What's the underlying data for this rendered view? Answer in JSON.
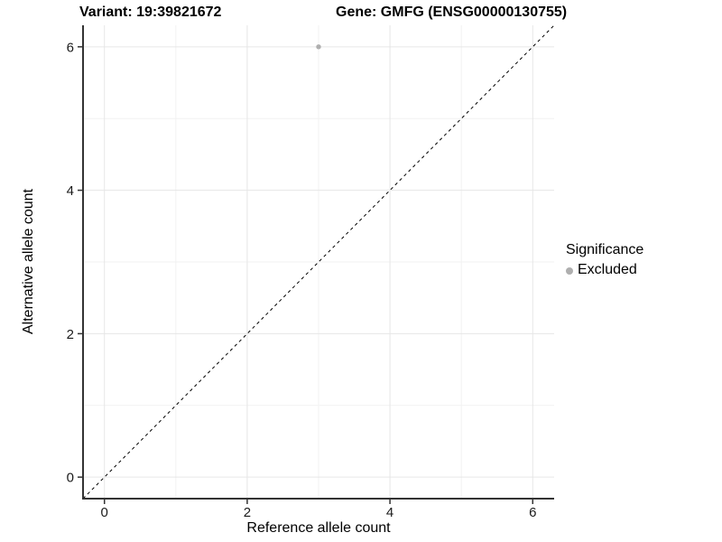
{
  "header": {
    "variant_title": "Variant: 19:39821672",
    "gene_title": "Gene: GMFG (ENSG00000130755)"
  },
  "chart_data": {
    "type": "scatter",
    "xlabel": "Reference allele count",
    "ylabel": "Alternative allele count",
    "xlim": [
      -0.3,
      6.3
    ],
    "ylim": [
      -0.3,
      6.3
    ],
    "x_major_ticks": [
      0,
      2,
      4,
      6
    ],
    "y_major_ticks": [
      0,
      2,
      4,
      6
    ],
    "x_minor_gridlines": [
      1,
      3,
      5
    ],
    "y_minor_gridlines": [
      1,
      3,
      5
    ],
    "grid": "major and minor, light gray on white",
    "points": [
      {
        "x": 3,
        "y": 6,
        "series": "Excluded"
      }
    ],
    "reference_line": {
      "type": "identity y=x",
      "style": "dashed",
      "x1": -0.3,
      "y1": -0.3,
      "x2": 6.3,
      "y2": 6.3
    },
    "legend": {
      "title": "Significance",
      "position": "right",
      "entries": [
        {
          "label": "Excluded",
          "color": "#afafaf"
        }
      ]
    }
  },
  "colors": {
    "point": "#afafaf",
    "axis_line": "#333333",
    "tick_text": "#1a1a1a",
    "major_grid": "#e6e6e6",
    "minor_grid": "#f2f2f2",
    "dashed_line": "#000000",
    "background": "#ffffff"
  }
}
